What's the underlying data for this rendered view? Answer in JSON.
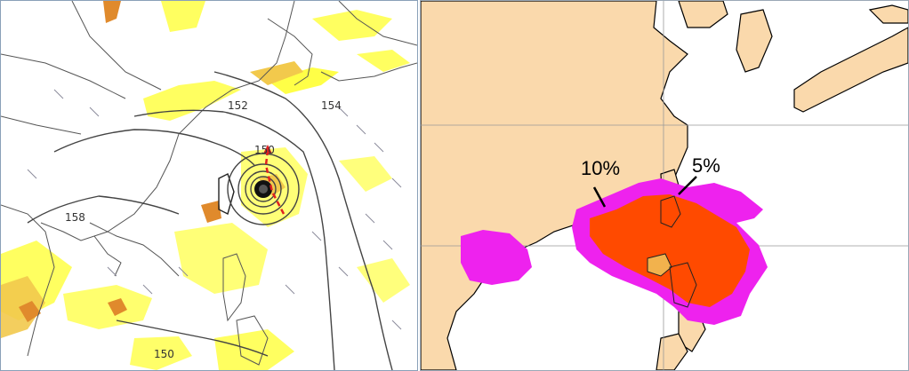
{
  "left_map": {
    "contour_labels": [
      "152",
      "154",
      "150",
      "158",
      "150"
    ],
    "colors": {
      "land_line": "#555555",
      "coast_line": "#222222",
      "precip_light": "#ffff33",
      "precip_mid": "#f2c94c",
      "precip_heavy": "#e08a2c",
      "track": "#e02020",
      "wind_barb": "#8a8a9a"
    },
    "typhoon": {
      "track_color": "#e02020",
      "eye_icon": "typhoon-eye-icon"
    }
  },
  "right_map": {
    "labels": {
      "pct_10": "10%",
      "pct_5": "5%"
    },
    "colors": {
      "land": "#fad9ac",
      "sea": "#ffffff",
      "prob_5": "#ee22ee",
      "prob_10": "#ff4a00",
      "grid": "#999999"
    }
  }
}
